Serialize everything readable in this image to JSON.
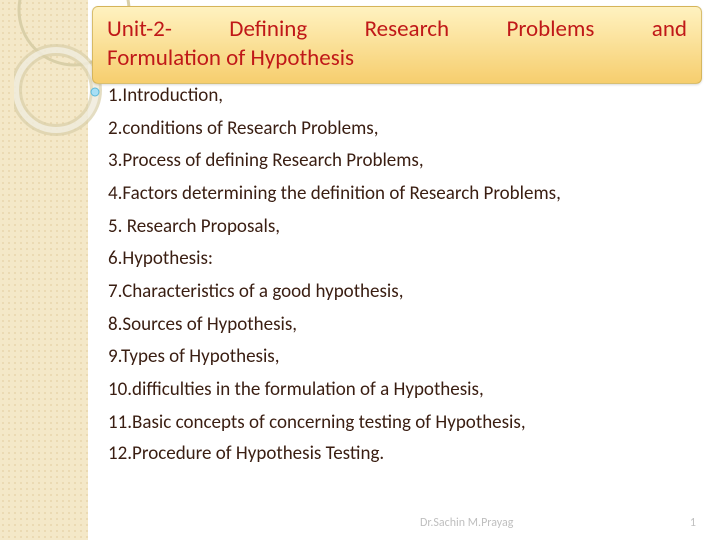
{
  "colors": {
    "title_text": "#c01818",
    "title_bg_top": "#fff2c0",
    "title_bg_bottom": "#f6ce6e",
    "list_text": "#3a1e12",
    "footer_text": "#bfbfbf",
    "band_bg": "#f4e8c8",
    "circle_stroke": "#d9cfa8",
    "bullet_fill": "#a8dff5",
    "bullet_stroke": "#5ab9d9"
  },
  "title": {
    "line1_parts": [
      "Unit-2-",
      "Defining",
      "Research",
      "Problems",
      "and"
    ],
    "line2": "Formulation of Hypothesis"
  },
  "items": [
    "1.Introduction,",
    "2.conditions of Research Problems,",
    "3.Process of defining Research Problems,",
    "4.Factors determining the definition of Research Problems,",
    "5. Research Proposals,",
    "6.Hypothesis:",
    "7.Characteristics of a good hypothesis,",
    "8.Sources of Hypothesis,",
    "9.Types of Hypothesis,",
    "10.difficulties in the formulation of a Hypothesis,",
    "11.Basic concepts of concerning testing of Hypothesis,",
    "12.Procedure of Hypothesis Testing."
  ],
  "footer": {
    "author": "Dr.Sachin M.Prayag",
    "page": "1"
  }
}
